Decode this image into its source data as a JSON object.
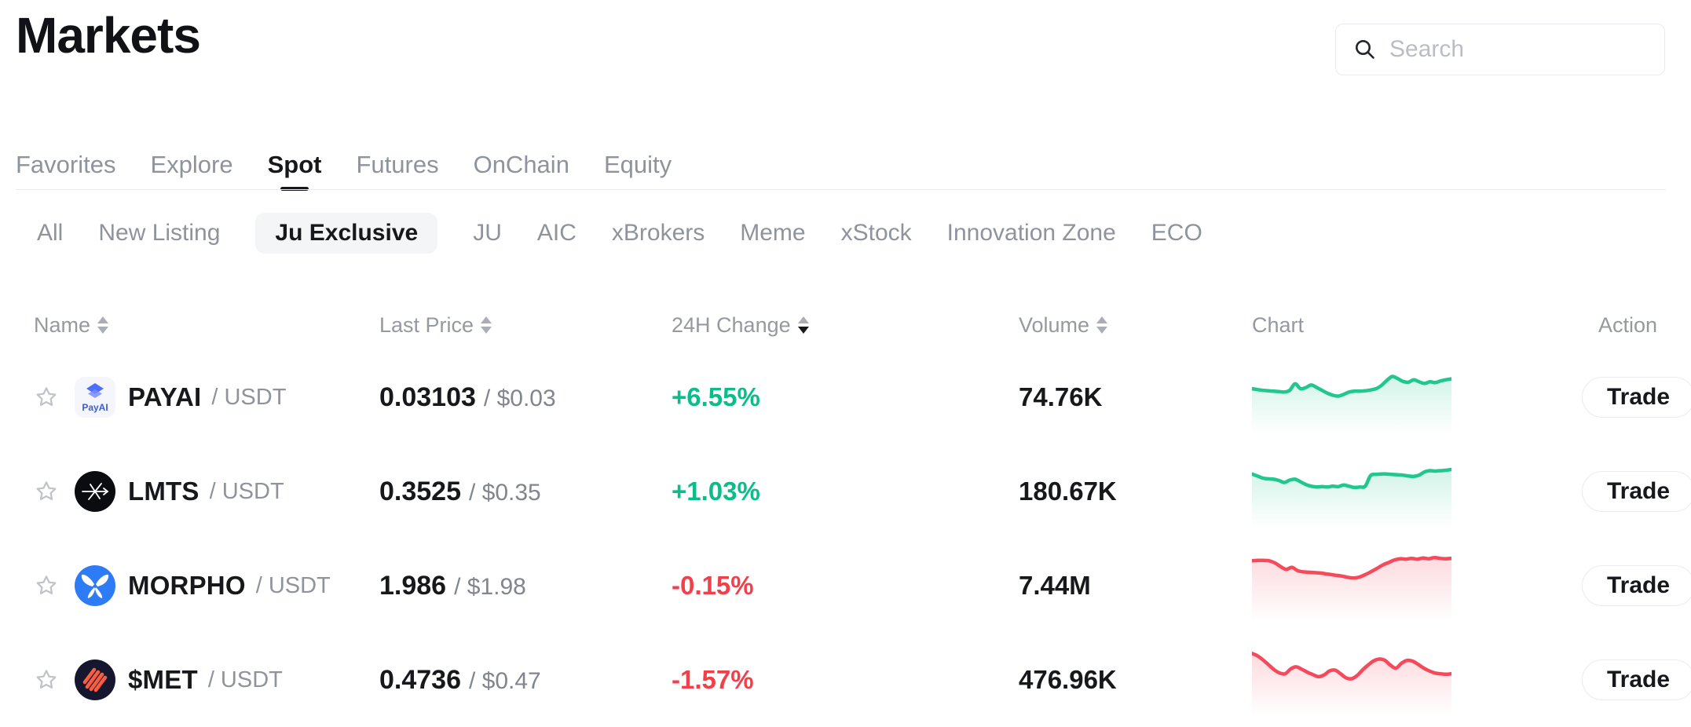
{
  "header": {
    "title": "Markets",
    "search_placeholder": "Search"
  },
  "tabs": [
    {
      "label": "Favorites",
      "active": false
    },
    {
      "label": "Explore",
      "active": false
    },
    {
      "label": "Spot",
      "active": true
    },
    {
      "label": "Futures",
      "active": false
    },
    {
      "label": "OnChain",
      "active": false
    },
    {
      "label": "Equity",
      "active": false
    }
  ],
  "filters": [
    {
      "label": "All",
      "active": false
    },
    {
      "label": "New Listing",
      "active": false
    },
    {
      "label": "Ju Exclusive",
      "active": true
    },
    {
      "label": "JU",
      "active": false
    },
    {
      "label": "AIC",
      "active": false
    },
    {
      "label": "xBrokers",
      "active": false
    },
    {
      "label": "Meme",
      "active": false
    },
    {
      "label": "xStock",
      "active": false
    },
    {
      "label": "Innovation Zone",
      "active": false
    },
    {
      "label": "ECO",
      "active": false
    }
  ],
  "table": {
    "columns": [
      {
        "label": "Name",
        "sortable": true,
        "sort": "none"
      },
      {
        "label": "Last Price",
        "sortable": true,
        "sort": "none"
      },
      {
        "label": "24H Change",
        "sortable": true,
        "sort": "desc"
      },
      {
        "label": "Volume",
        "sortable": true,
        "sort": "none"
      },
      {
        "label": "Chart",
        "sortable": false,
        "sort": "none"
      },
      {
        "label": "Action",
        "sortable": false,
        "sort": "none"
      }
    ],
    "rows": [
      {
        "logo": "payai-logo",
        "symbol": "PAYAI",
        "pair_suffix": "/ USDT",
        "last_price": "0.03103",
        "price_usd": "/ $0.03",
        "change": "+6.55%",
        "trend": "up",
        "volume": "74.76K",
        "action_label": "Trade",
        "sparkline": [
          44,
          42,
          40,
          39,
          38,
          37,
          36,
          40,
          56,
          44,
          47,
          53,
          47,
          40,
          33,
          28,
          26,
          30,
          36,
          38,
          38,
          39,
          41,
          44,
          52,
          64,
          74,
          69,
          62,
          60,
          66,
          61,
          57,
          61,
          59,
          63,
          66,
          68
        ]
      },
      {
        "logo": "lmts-logo",
        "symbol": "LMTS",
        "pair_suffix": "/ USDT",
        "last_price": "0.3525",
        "price_usd": "/ $0.35",
        "change": "+1.03%",
        "trend": "up",
        "volume": "180.67K",
        "action_label": "Trade",
        "sparkline": [
          66,
          61,
          56,
          54,
          53,
          50,
          45,
          51,
          53,
          47,
          40,
          36,
          34,
          35,
          34,
          36,
          35,
          39,
          36,
          33,
          34,
          36,
          62,
          65,
          66,
          66,
          65,
          64,
          63,
          61,
          60,
          63,
          71,
          74,
          73,
          74,
          75,
          77
        ]
      },
      {
        "logo": "morpho-logo",
        "symbol": "MORPHO",
        "pair_suffix": "/ USDT",
        "last_price": "1.986",
        "price_usd": "/ $1.98",
        "change": "-0.15%",
        "trend": "down",
        "volume": "7.44M",
        "action_label": "Trade",
        "sparkline": [
          84,
          85,
          85,
          84,
          79,
          70,
          63,
          68,
          60,
          57,
          56,
          55,
          54,
          52,
          50,
          48,
          46,
          43,
          42,
          45,
          51,
          58,
          66,
          74,
          80,
          86,
          89,
          88,
          90,
          88,
          91,
          89,
          92,
          90,
          89,
          90
        ]
      },
      {
        "logo": "met-logo",
        "symbol": "$MET",
        "pair_suffix": "/ USDT",
        "last_price": "0.4736",
        "price_usd": "/ $0.47",
        "change": "-1.57%",
        "trend": "down",
        "volume": "476.96K",
        "action_label": "Trade",
        "sparkline": [
          88,
          82,
          72,
          60,
          48,
          40,
          38,
          50,
          55,
          49,
          42,
          36,
          31,
          35,
          45,
          47,
          38,
          28,
          26,
          34,
          48,
          60,
          70,
          74,
          71,
          59,
          52,
          64,
          71,
          69,
          61,
          52,
          45,
          40,
          38,
          37,
          38
        ]
      }
    ]
  },
  "colors": {
    "up_text": "#0cbd8b",
    "up_line": "#21c78e",
    "down_text": "#f1404b",
    "down_line": "#f5495c"
  }
}
